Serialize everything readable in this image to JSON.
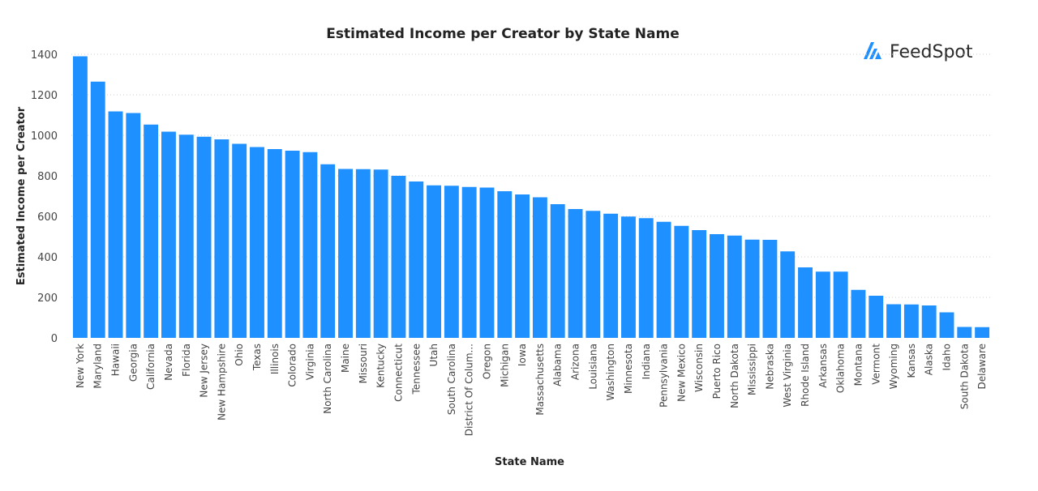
{
  "brand": {
    "name": "FeedSpot",
    "accent_color": "#1E90FF",
    "text_color": "#2a2a2a"
  },
  "chart_data": {
    "type": "bar",
    "title": "Estimated Income per Creator by State Name",
    "xlabel": "State Name",
    "ylabel": "Estimated Income per Creator",
    "ylim": [
      0,
      1400
    ],
    "yticks": [
      0,
      200,
      400,
      600,
      800,
      1000,
      1200,
      1400
    ],
    "grid": true,
    "bar_color": "#1E90FF",
    "categories": [
      "New York",
      "Maryland",
      "Hawaii",
      "Georgia",
      "California",
      "Nevada",
      "Florida",
      "New Jersey",
      "New Hampshire",
      "Ohio",
      "Texas",
      "Illinois",
      "Colorado",
      "Virginia",
      "North Carolina",
      "Maine",
      "Missouri",
      "Kentucky",
      "Connecticut",
      "Tennessee",
      "Utah",
      "South Carolina",
      "District Of Colum...",
      "Oregon",
      "Michigan",
      "Iowa",
      "Massachusetts",
      "Alabama",
      "Arizona",
      "Louisiana",
      "Washington",
      "Minnesota",
      "Indiana",
      "Pennsylvania",
      "New Mexico",
      "Wisconsin",
      "Puerto Rico",
      "North Dakota",
      "Mississippi",
      "Nebraska",
      "West Virginia",
      "Rhode Island",
      "Arkansas",
      "Oklahoma",
      "Montana",
      "Vermont",
      "Wyoming",
      "Kansas",
      "Alaska",
      "Idaho",
      "South Dakota",
      "Delaware"
    ],
    "values": [
      1390,
      1265,
      1118,
      1110,
      1053,
      1018,
      1003,
      993,
      980,
      958,
      942,
      932,
      924,
      917,
      857,
      834,
      833,
      831,
      800,
      772,
      753,
      751,
      745,
      742,
      724,
      708,
      694,
      660,
      636,
      627,
      613,
      599,
      591,
      573,
      553,
      532,
      512,
      505,
      485,
      484,
      427,
      348,
      327,
      327,
      237,
      208,
      166,
      165,
      160,
      126,
      54,
      53
    ]
  }
}
